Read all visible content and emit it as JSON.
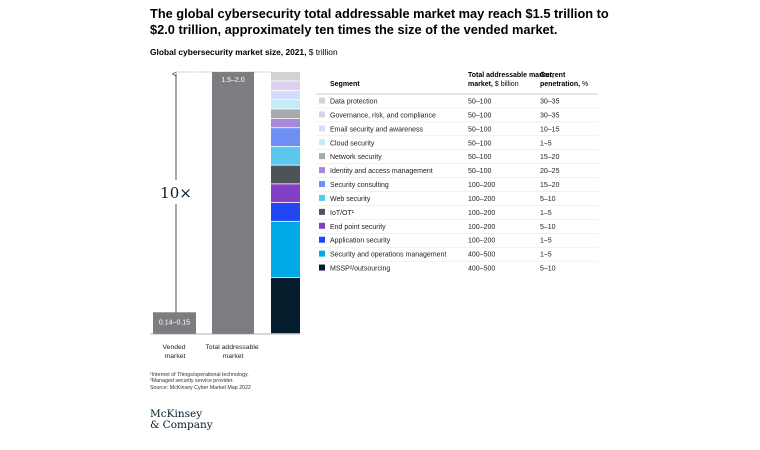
{
  "header": {
    "title": "The global cybersecurity total addressable market may reach $1.5 trillion to $2.0 trillion, approximately ten times the size of the vended market.",
    "subtitle_bold": "Global cybersecurity market size, 2021,",
    "subtitle_unit": "$ trillion"
  },
  "chart_data": {
    "type": "bar",
    "unit": "$ trillion",
    "categories": [
      "Vended market",
      "Total addressable market"
    ],
    "bar_labels": [
      "0.14–0.15",
      "1.5–2.0"
    ],
    "values": [
      0.145,
      1.75
    ],
    "multiplier_label": "10×",
    "breakdown": {
      "segment_header": "Segment",
      "tam_header": "Total addressable market,",
      "tam_unit": "$ billion",
      "pen_header": "Current penetration,",
      "pen_unit": "%",
      "segments": [
        {
          "name": "Data protection",
          "tam": "50–100",
          "penetration": "30–35",
          "color": "#cfd3d6",
          "weight": 75
        },
        {
          "name": "Governance, risk, and compliance",
          "tam": "50–100",
          "penetration": "30–35",
          "color": "#dcd0ef",
          "weight": 75
        },
        {
          "name": "Email security and awareness",
          "tam": "50–100",
          "penetration": "10–15",
          "color": "#d1dcff",
          "weight": 75
        },
        {
          "name": "Cloud security",
          "tam": "50–100",
          "penetration": "1–5",
          "color": "#c5ebf8",
          "weight": 75
        },
        {
          "name": "Network security",
          "tam": "50–100",
          "penetration": "15–20",
          "color": "#a7a9ab",
          "weight": 75
        },
        {
          "name": "Identity and access management",
          "tam": "50–100",
          "penetration": "20–25",
          "color": "#a889d9",
          "weight": 75
        },
        {
          "name": "Security consulting",
          "tam": "100–200",
          "penetration": "15–20",
          "color": "#6f8ff5",
          "weight": 150
        },
        {
          "name": "Web security",
          "tam": "100–200",
          "penetration": "5–10",
          "color": "#5cc7ee",
          "weight": 150
        },
        {
          "name": "IoT/OT¹",
          "tam": "100–200",
          "penetration": "1–5",
          "color": "#4d5459",
          "weight": 150
        },
        {
          "name": "End point security",
          "tam": "100–200",
          "penetration": "5–10",
          "color": "#8340c6",
          "weight": 150
        },
        {
          "name": "Application security",
          "tam": "100–200",
          "penetration": "1–5",
          "color": "#2047f2",
          "weight": 150
        },
        {
          "name": "Security and operations management",
          "tam": "400–500",
          "penetration": "1–5",
          "color": "#00a9e6",
          "weight": 450
        },
        {
          "name": "MSSP²/outsourcing",
          "tam": "400–500",
          "penetration": "5–10",
          "color": "#051c2c",
          "weight": 450
        }
      ]
    }
  },
  "footnotes": [
    "¹Internet of Things/operational technology.",
    "²Managed security service provider.",
    " Source: McKinsey Cyber Market Map 2022"
  ],
  "logo": {
    "line1": "McKinsey",
    "line2": "& Company"
  }
}
